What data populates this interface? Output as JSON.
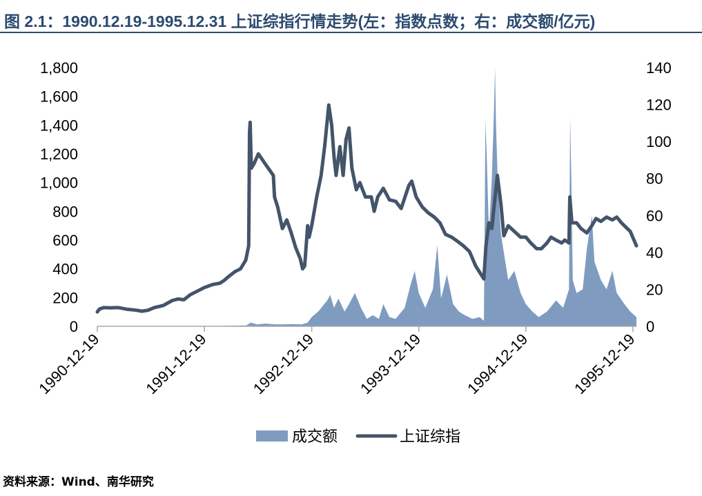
{
  "title": "图 2.1：1990.12.19-1995.12.31 上证综指行情走势(左：指数点数；右：成交额/亿元)",
  "source": "资料来源：Wind、南华研究",
  "colors": {
    "line": "#44546a",
    "area": "#7f9cc0",
    "title": "#2c4a70"
  },
  "chart_data": {
    "type": "line",
    "x_ticks": [
      "1990-12-19",
      "1991-12-19",
      "1992-12-19",
      "1993-12-19",
      "1994-12-19",
      "1995-12-19"
    ],
    "y_left_ticks": [
      "0",
      "200",
      "400",
      "600",
      "800",
      "1,000",
      "1,200",
      "1,400",
      "1,600",
      "1,800"
    ],
    "y_right_ticks": [
      "0",
      "20",
      "40",
      "60",
      "80",
      "100",
      "120",
      "140"
    ],
    "ylim_left": [
      0,
      1800
    ],
    "ylim_right": [
      0,
      140
    ],
    "xlim": [
      "1990-12-19",
      "1995-12-31"
    ],
    "grid": false,
    "legend_position": "bottom",
    "series": [
      {
        "name": "上证综指",
        "axis": "left",
        "kind": "line",
        "points": [
          [
            "1990-12-19",
            100
          ],
          [
            "1990-12-26",
            120
          ],
          [
            "1991-01-10",
            130
          ],
          [
            "1991-02-01",
            128
          ],
          [
            "1991-03-01",
            130
          ],
          [
            "1991-04-01",
            118
          ],
          [
            "1991-05-01",
            112
          ],
          [
            "1991-05-20",
            105
          ],
          [
            "1991-06-10",
            112
          ],
          [
            "1991-07-01",
            130
          ],
          [
            "1991-08-01",
            145
          ],
          [
            "1991-09-01",
            180
          ],
          [
            "1991-09-20",
            190
          ],
          [
            "1991-10-10",
            185
          ],
          [
            "1991-11-01",
            220
          ],
          [
            "1991-12-19",
            270
          ],
          [
            "1992-01-15",
            290
          ],
          [
            "1992-02-10",
            300
          ],
          [
            "1992-02-25",
            320
          ],
          [
            "1992-03-10",
            345
          ],
          [
            "1992-04-01",
            380
          ],
          [
            "1992-04-20",
            400
          ],
          [
            "1992-05-08",
            460
          ],
          [
            "1992-05-18",
            560
          ],
          [
            "1992-05-21",
            1350
          ],
          [
            "1992-05-23",
            1420
          ],
          [
            "1992-05-27",
            1100
          ],
          [
            "1992-06-05",
            1130
          ],
          [
            "1992-06-20",
            1200
          ],
          [
            "1992-07-10",
            1140
          ],
          [
            "1992-08-10",
            1050
          ],
          [
            "1992-08-14",
            900
          ],
          [
            "1992-08-25",
            830
          ],
          [
            "1992-09-10",
            680
          ],
          [
            "1992-09-25",
            740
          ],
          [
            "1992-10-10",
            650
          ],
          [
            "1992-10-25",
            550
          ],
          [
            "1992-11-10",
            470
          ],
          [
            "1992-11-18",
            400
          ],
          [
            "1992-11-25",
            420
          ],
          [
            "1992-12-05",
            700
          ],
          [
            "1992-12-10",
            620
          ],
          [
            "1992-12-19",
            700
          ],
          [
            "1993-01-05",
            900
          ],
          [
            "1993-01-20",
            1050
          ],
          [
            "1993-02-01",
            1250
          ],
          [
            "1993-02-15",
            1540
          ],
          [
            "1993-02-25",
            1400
          ],
          [
            "1993-03-05",
            1180
          ],
          [
            "1993-03-12",
            1050
          ],
          [
            "1993-03-25",
            1250
          ],
          [
            "1993-04-05",
            1050
          ],
          [
            "1993-04-15",
            1300
          ],
          [
            "1993-04-25",
            1380
          ],
          [
            "1993-05-05",
            1100
          ],
          [
            "1993-05-20",
            950
          ],
          [
            "1993-06-01",
            1000
          ],
          [
            "1993-06-20",
            900
          ],
          [
            "1993-07-10",
            900
          ],
          [
            "1993-07-20",
            800
          ],
          [
            "1993-08-01",
            900
          ],
          [
            "1993-08-20",
            960
          ],
          [
            "1993-09-10",
            880
          ],
          [
            "1993-10-01",
            870
          ],
          [
            "1993-10-20",
            820
          ],
          [
            "1993-11-15",
            980
          ],
          [
            "1993-11-25",
            1010
          ],
          [
            "1993-12-10",
            900
          ],
          [
            "1993-12-31",
            830
          ],
          [
            "1994-01-20",
            790
          ],
          [
            "1994-02-10",
            760
          ],
          [
            "1994-03-01",
            720
          ],
          [
            "1994-03-20",
            640
          ],
          [
            "1994-04-10",
            620
          ],
          [
            "1994-05-01",
            590
          ],
          [
            "1994-05-20",
            560
          ],
          [
            "1994-06-10",
            520
          ],
          [
            "1994-07-01",
            420
          ],
          [
            "1994-07-29",
            330
          ],
          [
            "1994-08-05",
            560
          ],
          [
            "1994-08-15",
            720
          ],
          [
            "1994-08-25",
            680
          ],
          [
            "1994-09-05",
            900
          ],
          [
            "1994-09-13",
            1050
          ],
          [
            "1994-09-25",
            850
          ],
          [
            "1994-10-05",
            630
          ],
          [
            "1994-10-20",
            700
          ],
          [
            "1994-11-10",
            660
          ],
          [
            "1994-12-01",
            620
          ],
          [
            "1994-12-19",
            620
          ],
          [
            "1995-01-05",
            580
          ],
          [
            "1995-01-25",
            540
          ],
          [
            "1995-02-10",
            540
          ],
          [
            "1995-03-01",
            580
          ],
          [
            "1995-03-15",
            620
          ],
          [
            "1995-04-01",
            600
          ],
          [
            "1995-04-20",
            580
          ],
          [
            "1995-05-01",
            600
          ],
          [
            "1995-05-15",
            580
          ],
          [
            "1995-05-18",
            900
          ],
          [
            "1995-05-25",
            720
          ],
          [
            "1995-06-10",
            720
          ],
          [
            "1995-06-25",
            680
          ],
          [
            "1995-07-15",
            650
          ],
          [
            "1995-08-01",
            700
          ],
          [
            "1995-08-15",
            750
          ],
          [
            "1995-09-01",
            730
          ],
          [
            "1995-09-20",
            760
          ],
          [
            "1995-10-10",
            740
          ],
          [
            "1995-10-25",
            760
          ],
          [
            "1995-11-10",
            720
          ],
          [
            "1995-11-25",
            690
          ],
          [
            "1995-12-10",
            660
          ],
          [
            "1995-12-31",
            560
          ]
        ]
      },
      {
        "name": "成交额",
        "axis": "right",
        "kind": "area",
        "points": [
          [
            "1990-12-19",
            0
          ],
          [
            "1991-12-19",
            0
          ],
          [
            "1992-05-10",
            0.5
          ],
          [
            "1992-05-25",
            2
          ],
          [
            "1992-06-15",
            1
          ],
          [
            "1992-07-15",
            1.5
          ],
          [
            "1992-08-15",
            1
          ],
          [
            "1992-09-15",
            1
          ],
          [
            "1992-10-15",
            1.2
          ],
          [
            "1992-11-15",
            1
          ],
          [
            "1992-12-05",
            2
          ],
          [
            "1992-12-19",
            5
          ],
          [
            "1993-01-10",
            8
          ],
          [
            "1993-02-10",
            14
          ],
          [
            "1993-02-20",
            17
          ],
          [
            "1993-03-05",
            10
          ],
          [
            "1993-03-20",
            15
          ],
          [
            "1993-04-10",
            8
          ],
          [
            "1993-04-25",
            12
          ],
          [
            "1993-05-15",
            18
          ],
          [
            "1993-06-05",
            10
          ],
          [
            "1993-06-25",
            4
          ],
          [
            "1993-07-15",
            6
          ],
          [
            "1993-08-05",
            4
          ],
          [
            "1993-08-20",
            12
          ],
          [
            "1993-09-10",
            5
          ],
          [
            "1993-10-01",
            4
          ],
          [
            "1993-11-01",
            10
          ],
          [
            "1993-11-20",
            22
          ],
          [
            "1993-12-05",
            30
          ],
          [
            "1993-12-19",
            18
          ],
          [
            "1994-01-10",
            10
          ],
          [
            "1994-02-05",
            20
          ],
          [
            "1994-02-20",
            44
          ],
          [
            "1994-03-05",
            15
          ],
          [
            "1994-03-25",
            28
          ],
          [
            "1994-04-15",
            12
          ],
          [
            "1994-05-05",
            8
          ],
          [
            "1994-05-25",
            6
          ],
          [
            "1994-06-20",
            4
          ],
          [
            "1994-07-15",
            5
          ],
          [
            "1994-07-29",
            3
          ],
          [
            "1994-08-01",
            60
          ],
          [
            "1994-08-03",
            112
          ],
          [
            "1994-08-08",
            90
          ],
          [
            "1994-08-15",
            50
          ],
          [
            "1994-08-25",
            80
          ],
          [
            "1994-09-01",
            115
          ],
          [
            "1994-09-05",
            140
          ],
          [
            "1994-09-08",
            110
          ],
          [
            "1994-09-15",
            75
          ],
          [
            "1994-09-25",
            50
          ],
          [
            "1994-10-05",
            40
          ],
          [
            "1994-10-20",
            25
          ],
          [
            "1994-11-10",
            30
          ],
          [
            "1994-12-01",
            18
          ],
          [
            "1994-12-19",
            12
          ],
          [
            "1995-01-10",
            8
          ],
          [
            "1995-02-01",
            5
          ],
          [
            "1995-03-01",
            8
          ],
          [
            "1995-04-01",
            14
          ],
          [
            "1995-04-25",
            10
          ],
          [
            "1995-05-15",
            20
          ],
          [
            "1995-05-19",
            114
          ],
          [
            "1995-05-23",
            80
          ],
          [
            "1995-05-28",
            25
          ],
          [
            "1995-06-10",
            18
          ],
          [
            "1995-07-01",
            20
          ],
          [
            "1995-07-15",
            42
          ],
          [
            "1995-08-01",
            60
          ],
          [
            "1995-08-10",
            35
          ],
          [
            "1995-09-01",
            25
          ],
          [
            "1995-09-20",
            20
          ],
          [
            "1995-10-10",
            30
          ],
          [
            "1995-10-25",
            18
          ],
          [
            "1995-11-20",
            12
          ],
          [
            "1995-12-10",
            8
          ],
          [
            "1995-12-31",
            5
          ]
        ]
      }
    ]
  }
}
